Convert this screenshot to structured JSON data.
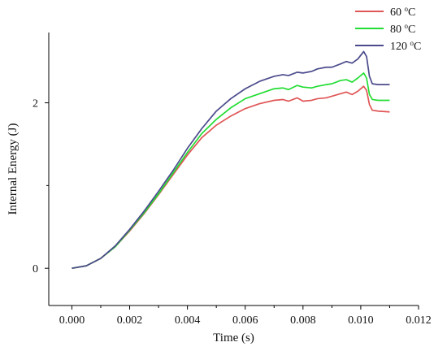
{
  "chart_data": {
    "type": "line",
    "title": "",
    "xlabel": "Time (s)",
    "ylabel": "Internal Energy (J)",
    "xlim": [
      -0.0008,
      0.012
    ],
    "ylim": [
      -0.45,
      2.85
    ],
    "x_ticks": [
      0.0,
      0.002,
      0.004,
      0.006,
      0.008,
      0.01,
      0.012
    ],
    "x_tick_labels": [
      "0.000",
      "0.002",
      "0.004",
      "0.006",
      "0.008",
      "0.010",
      "0.012"
    ],
    "y_ticks": [
      0,
      2
    ],
    "y_tick_labels": [
      "0",
      "2"
    ],
    "grid": false,
    "legend_position": "top-right",
    "series": [
      {
        "name": "60 oC",
        "label_main": "60 ",
        "label_sup": "o",
        "label_unit": "C",
        "color": "#e05555",
        "x": [
          0,
          0.0005,
          0.001,
          0.0015,
          0.002,
          0.0025,
          0.003,
          0.0035,
          0.004,
          0.0045,
          0.005,
          0.0055,
          0.006,
          0.0065,
          0.007,
          0.0073,
          0.0075,
          0.0078,
          0.008,
          0.0083,
          0.0085,
          0.0088,
          0.009,
          0.0093,
          0.0095,
          0.0097,
          0.0099,
          0.0101,
          0.0102,
          0.0103,
          0.0104,
          0.0106,
          0.011
        ],
        "y": [
          0,
          0.03,
          0.12,
          0.26,
          0.45,
          0.66,
          0.89,
          1.13,
          1.37,
          1.58,
          1.73,
          1.84,
          1.93,
          1.99,
          2.03,
          2.04,
          2.02,
          2.06,
          2.02,
          2.03,
          2.05,
          2.06,
          2.08,
          2.11,
          2.13,
          2.1,
          2.14,
          2.2,
          2.15,
          1.98,
          1.91,
          1.9,
          1.89
        ]
      },
      {
        "name": "80 oC",
        "label_main": "80 ",
        "label_sup": "o",
        "label_unit": "C",
        "color": "#22dd33",
        "x": [
          0,
          0.0005,
          0.001,
          0.0015,
          0.002,
          0.0025,
          0.003,
          0.0035,
          0.004,
          0.0045,
          0.005,
          0.0055,
          0.006,
          0.0065,
          0.007,
          0.0073,
          0.0075,
          0.0078,
          0.008,
          0.0083,
          0.0085,
          0.0088,
          0.009,
          0.0093,
          0.0095,
          0.0097,
          0.0099,
          0.0101,
          0.0102,
          0.0103,
          0.0104,
          0.0106,
          0.011
        ],
        "y": [
          0,
          0.03,
          0.12,
          0.26,
          0.46,
          0.67,
          0.9,
          1.15,
          1.4,
          1.63,
          1.8,
          1.94,
          2.05,
          2.11,
          2.17,
          2.18,
          2.16,
          2.21,
          2.19,
          2.18,
          2.2,
          2.22,
          2.23,
          2.27,
          2.28,
          2.25,
          2.3,
          2.36,
          2.3,
          2.1,
          2.04,
          2.03,
          2.03
        ]
      },
      {
        "name": "120 oC",
        "label_main": "120 ",
        "label_sup": "o",
        "label_unit": "C",
        "color": "#4a4a8c",
        "x": [
          0,
          0.0005,
          0.001,
          0.0015,
          0.002,
          0.0025,
          0.003,
          0.0035,
          0.004,
          0.0045,
          0.005,
          0.0055,
          0.006,
          0.0065,
          0.007,
          0.0073,
          0.0075,
          0.0078,
          0.008,
          0.0083,
          0.0085,
          0.0088,
          0.009,
          0.0093,
          0.0095,
          0.0097,
          0.0099,
          0.0101,
          0.0102,
          0.0103,
          0.0104,
          0.0106,
          0.011
        ],
        "y": [
          0,
          0.03,
          0.12,
          0.27,
          0.47,
          0.69,
          0.93,
          1.18,
          1.45,
          1.69,
          1.9,
          2.05,
          2.17,
          2.26,
          2.32,
          2.34,
          2.33,
          2.37,
          2.36,
          2.38,
          2.41,
          2.43,
          2.43,
          2.47,
          2.5,
          2.48,
          2.53,
          2.62,
          2.56,
          2.32,
          2.23,
          2.22,
          2.22
        ]
      }
    ]
  }
}
